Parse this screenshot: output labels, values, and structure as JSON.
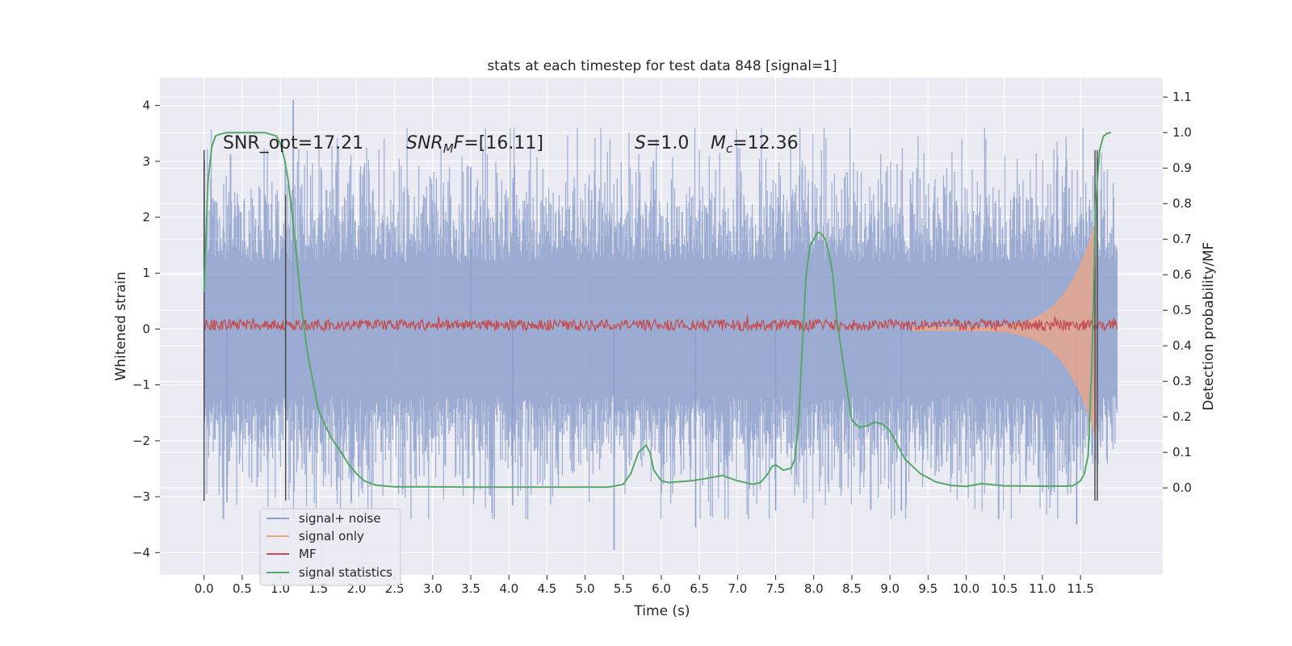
{
  "chart_data": {
    "type": "line",
    "title": "stats at each timestep for test data 848 [signal=1]",
    "xlabel": "Time (s)",
    "ylabel": "Whitened strain",
    "y2label": "Detection probability/MF",
    "xlim": [
      -0.58,
      12.58
    ],
    "ylim": [
      -4.4,
      4.5
    ],
    "y2lim": [
      -0.245,
      1.155
    ],
    "xticks": [
      0.0,
      0.5,
      1.0,
      1.5,
      2.0,
      2.5,
      3.0,
      3.5,
      4.0,
      4.5,
      5.0,
      5.5,
      6.0,
      6.5,
      7.0,
      7.5,
      8.0,
      8.5,
      9.0,
      9.5,
      10.0,
      10.5,
      11.0,
      11.5
    ],
    "xtick_labels": [
      "0.0",
      "0.5",
      "1.0",
      "1.5",
      "2.0",
      "2.5",
      "3.0",
      "3.5",
      "4.0",
      "4.5",
      "5.0",
      "5.5",
      "6.0",
      "6.5",
      "7.0",
      "7.5",
      "8.0",
      "8.5",
      "9.0",
      "9.5",
      "10.0",
      "10.5",
      "11.0",
      "11.5"
    ],
    "yticks": [
      4,
      3,
      2,
      1,
      0,
      -1,
      -2,
      -3,
      -4
    ],
    "ytick_labels": [
      "4",
      "3",
      "2",
      "1",
      "0",
      "−1",
      "−2",
      "−3",
      "−4"
    ],
    "y2ticks": [
      1.1,
      1.0,
      0.9,
      0.8,
      0.7,
      0.6,
      0.5,
      0.4,
      0.3,
      0.2,
      0.1,
      0.0
    ],
    "y2tick_labels": [
      "1.1",
      "1.0",
      "0.9",
      "0.8",
      "0.7",
      "0.6",
      "0.5",
      "0.4",
      "0.3",
      "0.2",
      "0.1",
      "0.0"
    ],
    "grid": true,
    "legend_position": "lower-left",
    "annotations": {
      "snr_opt": "SNR_opt=17.21",
      "snr_mf": "=[16.11]",
      "snr_mf_sym": "SNR",
      "snr_mf_sub": "M",
      "snr_mf_f": "F",
      "s_sym": "S",
      "s_val": "=1.0",
      "mc_sym": "M",
      "mc_sub": "c",
      "mc_val": "=12.36"
    },
    "vertical_markers": [
      {
        "x": 0.0,
        "ymin": -3.07,
        "ymax": 3.2
      },
      {
        "x": 1.07,
        "ymin": -3.07,
        "ymax": 2.4
      },
      {
        "x": 11.69,
        "ymin": -3.07,
        "ymax": 3.2
      },
      {
        "x": 11.72,
        "ymin": -3.07,
        "ymax": 3.2
      }
    ],
    "series": [
      {
        "name": "signal+ noise",
        "color": "#8da0cb",
        "x_range": [
          0.0,
          11.98
        ],
        "noise_amplitude": 1.35,
        "max": 4.1,
        "min": -3.95,
        "description_note": "dense whitened noise band roughly between -2 and +2 with spikes"
      },
      {
        "name": "signal only",
        "color": "#e8a58a",
        "chirp_start": 9.3,
        "chirp_end": 11.7,
        "chirp_peak_amplitude": 1.9
      },
      {
        "name": "MF",
        "color": "#c44e52",
        "baseline": 0.07,
        "amplitude": 0.1
      },
      {
        "name": "signal statistics",
        "color": "#55a868",
        "axis": "right",
        "x": [
          0.0,
          0.05,
          0.1,
          0.15,
          0.2,
          0.3,
          0.5,
          0.8,
          0.95,
          1.0,
          1.05,
          1.1,
          1.15,
          1.2,
          1.25,
          1.3,
          1.35,
          1.4,
          1.5,
          1.6,
          1.7,
          1.8,
          1.9,
          2.0,
          2.1,
          2.25,
          2.5,
          3.0,
          3.5,
          4.0,
          4.5,
          5.0,
          5.3,
          5.5,
          5.6,
          5.7,
          5.8,
          5.85,
          5.9,
          6.0,
          6.1,
          6.2,
          6.4,
          6.6,
          6.8,
          7.0,
          7.2,
          7.3,
          7.4,
          7.45,
          7.5,
          7.6,
          7.7,
          7.75,
          7.8,
          7.85,
          7.9,
          7.95,
          8.0,
          8.05,
          8.1,
          8.15,
          8.2,
          8.25,
          8.3,
          8.4,
          8.5,
          8.6,
          8.7,
          8.8,
          8.9,
          9.0,
          9.1,
          9.2,
          9.4,
          9.6,
          9.8,
          10.0,
          10.2,
          10.5,
          11.0,
          11.3,
          11.4,
          11.5,
          11.55,
          11.6,
          11.65,
          11.7,
          11.75,
          11.8,
          11.85,
          11.9
        ],
        "values": [
          0.55,
          0.86,
          0.96,
          0.99,
          0.995,
          1.0,
          1.0,
          1.0,
          0.99,
          0.97,
          0.93,
          0.87,
          0.78,
          0.68,
          0.57,
          0.47,
          0.39,
          0.33,
          0.22,
          0.17,
          0.13,
          0.1,
          0.065,
          0.04,
          0.02,
          0.008,
          0.003,
          0.003,
          0.002,
          0.002,
          0.002,
          0.002,
          0.002,
          0.01,
          0.04,
          0.1,
          0.12,
          0.1,
          0.05,
          0.02,
          0.015,
          0.017,
          0.02,
          0.027,
          0.035,
          0.02,
          0.01,
          0.015,
          0.04,
          0.06,
          0.065,
          0.05,
          0.055,
          0.08,
          0.18,
          0.4,
          0.6,
          0.68,
          0.7,
          0.72,
          0.715,
          0.7,
          0.66,
          0.6,
          0.48,
          0.33,
          0.19,
          0.17,
          0.175,
          0.185,
          0.18,
          0.16,
          0.12,
          0.08,
          0.04,
          0.017,
          0.007,
          0.004,
          0.012,
          0.006,
          0.005,
          0.005,
          0.006,
          0.02,
          0.04,
          0.09,
          0.35,
          0.8,
          0.95,
          0.99,
          0.998,
          1.0
        ]
      }
    ]
  }
}
